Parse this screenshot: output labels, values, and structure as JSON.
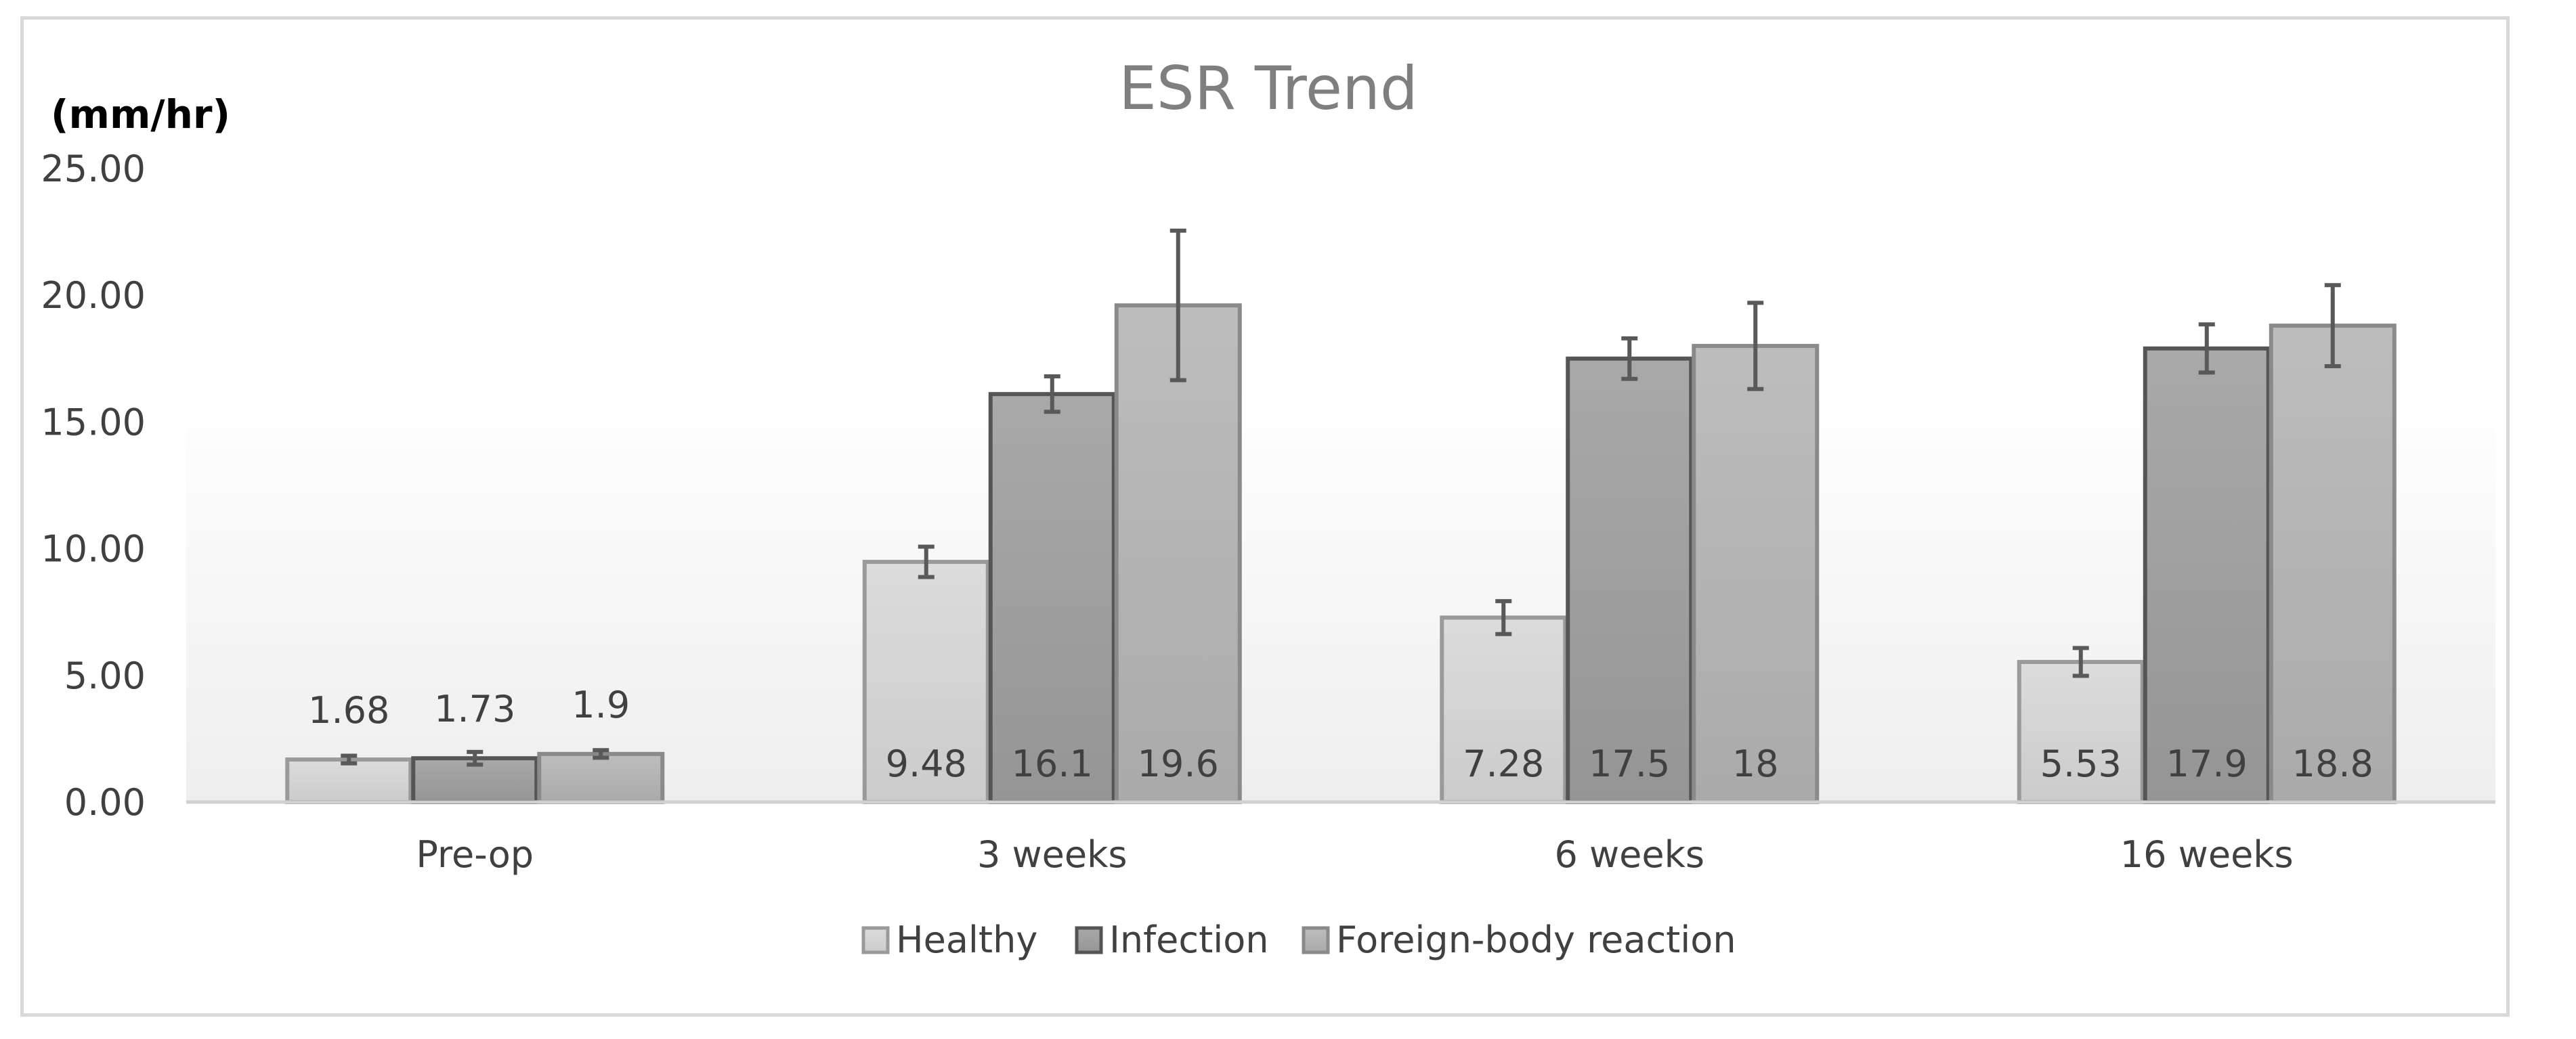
{
  "chart_data": {
    "type": "bar",
    "title": "ESR Trend",
    "ylabel": "(mm/hr)",
    "xlabel": "",
    "ylim": [
      0,
      25
    ],
    "yticks": [
      "0.00",
      "5.00",
      "10.00",
      "15.00",
      "20.00",
      "25.00"
    ],
    "categories": [
      "Pre-op",
      "3 weeks",
      "6 weeks",
      "16 weeks"
    ],
    "grid": false,
    "legend_position": "bottom",
    "series": [
      {
        "name": "Healthy",
        "color": "#d4d4d4",
        "values": [
          1.68,
          9.48,
          7.28,
          5.53
        ],
        "labels": [
          "1.68",
          "9.48",
          "7.28",
          "5.53"
        ],
        "error": [
          0.15,
          0.6,
          0.65,
          0.55
        ]
      },
      {
        "name": "Infection",
        "color": "#a0a0a0",
        "values": [
          1.73,
          16.1,
          17.5,
          17.9
        ],
        "labels": [
          "1.73",
          "16.1",
          "17.5",
          "17.9"
        ],
        "error": [
          0.25,
          0.7,
          0.8,
          0.95
        ]
      },
      {
        "name": "Foreign-body reaction",
        "color": "#b4b4b4",
        "values": [
          1.9,
          19.6,
          18.0,
          18.8
        ],
        "labels": [
          "1.9",
          "19.6",
          "18",
          "18.8"
        ],
        "error": [
          0.15,
          2.95,
          1.7,
          1.6
        ]
      }
    ]
  }
}
